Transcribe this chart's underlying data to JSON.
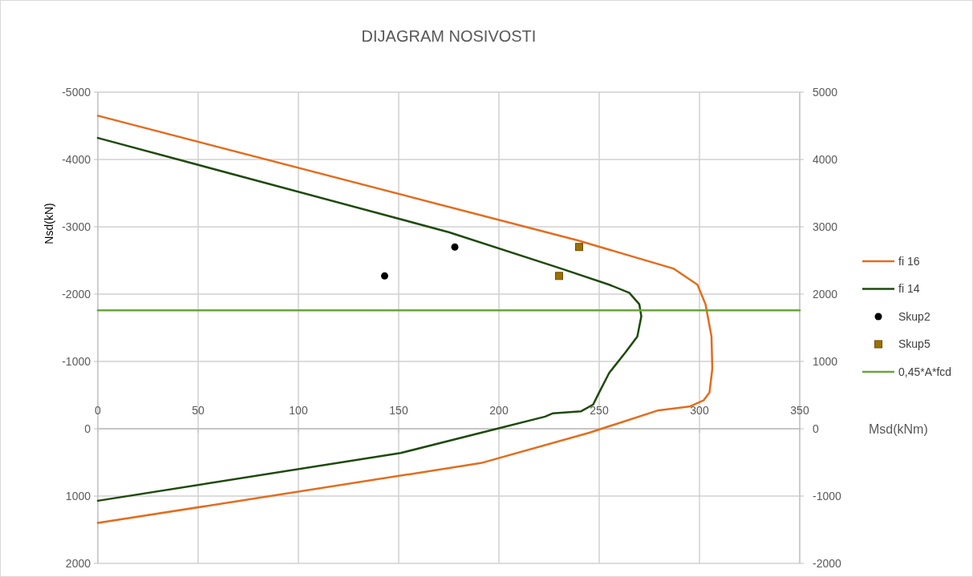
{
  "chart_data": {
    "type": "line",
    "title": "DIJAGRAM NOSIVOSTI",
    "xlabel": "Msd(kNm)",
    "ylabel": "Nsd(kN)",
    "xlim": [
      0,
      350
    ],
    "xticks": [
      0,
      50,
      100,
      150,
      200,
      250,
      300,
      350
    ],
    "ylim": [
      2000,
      -5000
    ],
    "yticks": [
      -5000,
      -4000,
      -3000,
      -2000,
      -1000,
      0,
      1000,
      2000
    ],
    "y2lim": [
      -2000,
      5000
    ],
    "y2ticks": [
      5000,
      4000,
      3000,
      2000,
      1000,
      0,
      -1000,
      -2000
    ],
    "grid": true,
    "legend": "right",
    "series": [
      {
        "name": "fi 16",
        "color": "#e36c1d",
        "x": [
          0,
          239,
          287,
          299,
          303,
          306,
          306.4,
          305,
          302,
          295,
          279,
          245,
          191,
          0
        ],
        "values": [
          -4650,
          -2800,
          -2380,
          -2140,
          -1850,
          -1370,
          -890,
          -540,
          -420,
          -330,
          -270,
          60,
          510,
          1400
        ]
      },
      {
        "name": "fi 14",
        "color": "#1e4a0c",
        "x": [
          0,
          175,
          231,
          255,
          265,
          270,
          271,
          269,
          263,
          255,
          250,
          247,
          241,
          227,
          223,
          199,
          151,
          0
        ],
        "values": [
          -4320,
          -2920,
          -2380,
          -2140,
          -2020,
          -1850,
          -1670,
          -1370,
          -1130,
          -830,
          -540,
          -360,
          -260,
          -230,
          -180,
          0,
          360,
          1070
        ]
      },
      {
        "name": "Skup2",
        "type": "scatter",
        "marker": "circle",
        "color": "#000000",
        "x": [
          143,
          178
        ],
        "values": [
          -2270,
          -2700
        ]
      },
      {
        "name": "Skup5",
        "type": "scatter",
        "marker": "square",
        "color": "#9c7000",
        "x": [
          230,
          240
        ],
        "values": [
          -2270,
          -2700
        ]
      },
      {
        "name": "0,45*A*fcd",
        "color": "#6aa53c",
        "x": [
          0,
          350
        ],
        "values": [
          -1760,
          -1760
        ]
      }
    ]
  }
}
